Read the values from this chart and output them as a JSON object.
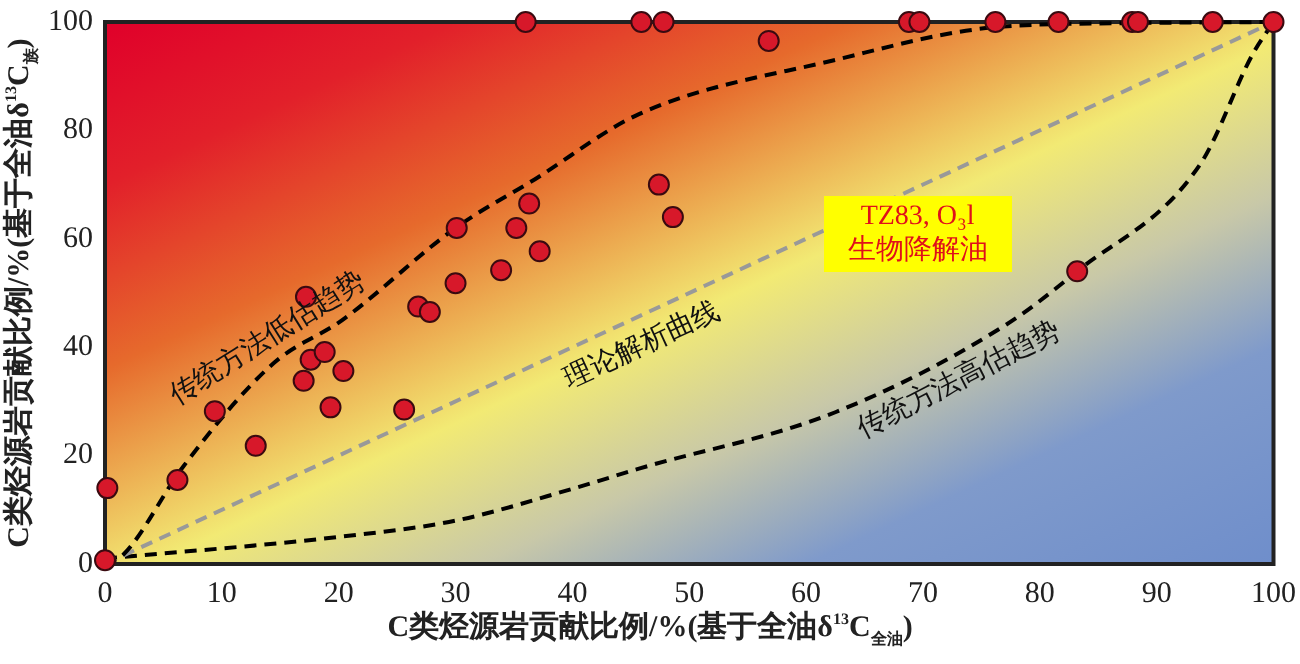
{
  "chart_data": {
    "type": "scatter",
    "xlabel": "C类烃源岩贡献比例/%(基于全油δ$^{13}$C$_{全油}$)",
    "ylabel": "C类烃源岩贡献比例/%(基于全油δ$^{13}$C$_{族}$)",
    "xlim": [
      0,
      100
    ],
    "xticks": [
      0,
      10,
      20,
      30,
      40,
      50,
      60,
      70,
      80,
      90,
      100
    ],
    "ylim": [
      0,
      100
    ],
    "yticks": [
      0,
      20,
      40,
      60,
      80,
      100
    ],
    "grid": false,
    "legend": false,
    "marker": "circle",
    "series": [
      {
        "type": "line",
        "name": "传统方法低估趋势",
        "color": "#000000",
        "line_style": "dashed",
        "marker": "none",
        "x": [
          0,
          1.6,
          6.7,
          14.4,
          20.3,
          30,
          36.8,
          45.7,
          62.5,
          76,
          88,
          100
        ],
        "values": [
          0,
          1.8,
          18,
          37,
          45,
          62,
          71,
          83,
          93,
          99,
          99.8,
          100
        ]
      },
      {
        "type": "line",
        "name": "理论解析曲线",
        "color": "#999999",
        "line_style": "dashed",
        "marker": "none",
        "x": [
          0,
          100
        ],
        "values": [
          0,
          100
        ]
      },
      {
        "type": "line",
        "name": "传统方法高估趋势",
        "color": "#000000",
        "line_style": "dashed",
        "marker": "none",
        "x": [
          0,
          20,
          30,
          40.2,
          45.7,
          62.5,
          77,
          83.2,
          93.8,
          98.2,
          100
        ],
        "values": [
          1,
          5,
          8,
          14,
          17.6,
          28,
          44,
          54,
          74,
          94,
          100
        ]
      },
      {
        "color": "#d7182a",
        "x": [
          0,
          0.2,
          6.2,
          9.4,
          12.9,
          17,
          17.6,
          18.8,
          19.3,
          20.4,
          25.6,
          17.2,
          26.8,
          27.8,
          30,
          30.1,
          33.9,
          35.2,
          36.3,
          37.2,
          36,
          45.9,
          47.8,
          47.4,
          48.6,
          56.8,
          68.8,
          69.7,
          76.2,
          81.6,
          87.9,
          88.4,
          94.8,
          100,
          83.2
        ],
        "values": [
          0.7,
          14,
          15.5,
          28.2,
          21.8,
          33.8,
          37.7,
          39.1,
          28.9,
          35.6,
          28.5,
          49.3,
          47.5,
          46.5,
          51.8,
          62,
          54.2,
          62,
          66.5,
          57.7,
          100,
          100,
          100,
          70,
          64,
          96.5,
          100,
          100,
          100,
          100,
          100,
          100,
          100,
          100,
          54
        ]
      }
    ],
    "annotations": [
      "TZ83, O₃l 生物降解油"
    ]
  }
}
